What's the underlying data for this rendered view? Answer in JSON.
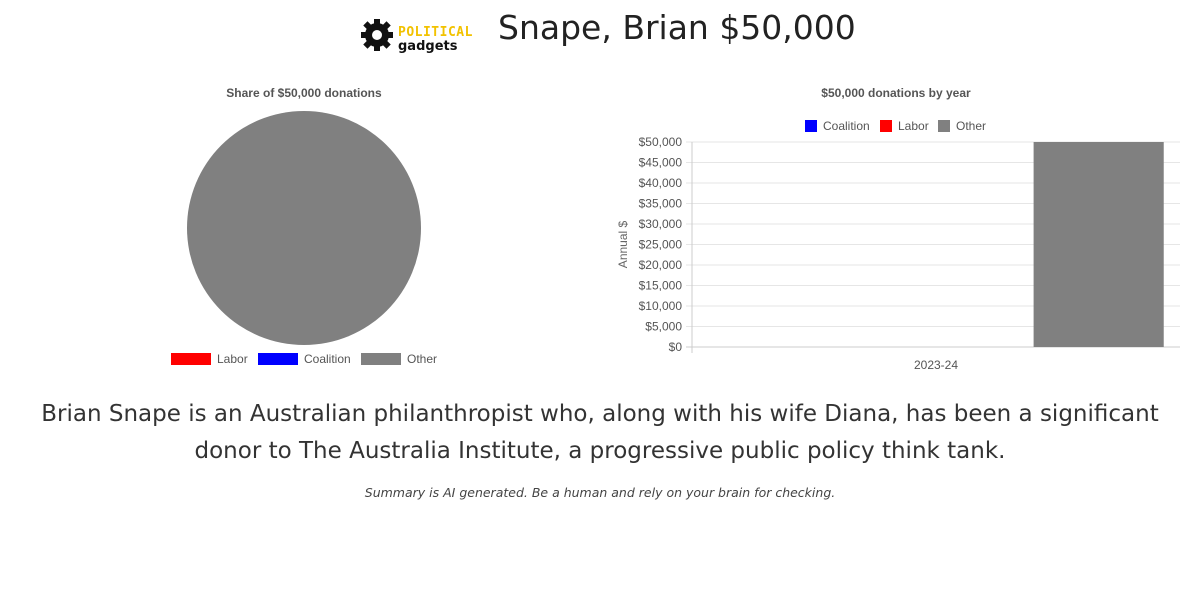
{
  "header": {
    "logo_line1": "POLITICAL",
    "logo_line2": "gadgets",
    "title": "Snape, Brian $50,000"
  },
  "colors": {
    "coalition": "#0000ff",
    "labor": "#ff0000",
    "other": "#808080",
    "logo_accent": "#f2c200"
  },
  "chart_data": [
    {
      "type": "pie",
      "title": "Share of $50,000 donations",
      "slices": [
        {
          "label": "Labor",
          "value": 0,
          "color": "#ff0000"
        },
        {
          "label": "Coalition",
          "value": 0,
          "color": "#0000ff"
        },
        {
          "label": "Other",
          "value": 50000,
          "color": "#808080"
        }
      ],
      "legend_placement": "bottom"
    },
    {
      "type": "bar",
      "title": "$50,000 donations by year",
      "categories": [
        "2023-24"
      ],
      "series": [
        {
          "name": "Coalition",
          "values": [
            0
          ],
          "color": "#0000ff"
        },
        {
          "name": "Labor",
          "values": [
            0
          ],
          "color": "#ff0000"
        },
        {
          "name": "Other",
          "values": [
            50000
          ],
          "color": "#808080"
        }
      ],
      "xlabel": "",
      "ylabel": "Annual $",
      "ylim": [
        0,
        50000
      ],
      "yticks": [
        "$0",
        "$5,000",
        "$10,000",
        "$15,000",
        "$20,000",
        "$25,000",
        "$30,000",
        "$35,000",
        "$40,000",
        "$45,000",
        "$50,000"
      ],
      "grid": true,
      "legend_placement": "top"
    }
  ],
  "summary": "Brian Snape is an Australian philanthropist who, along with his wife Diana, has been a significant donor to The Australia Institute, a progressive public policy think tank.",
  "disclaimer": "Summary is AI generated. Be a human and rely on your brain for checking."
}
